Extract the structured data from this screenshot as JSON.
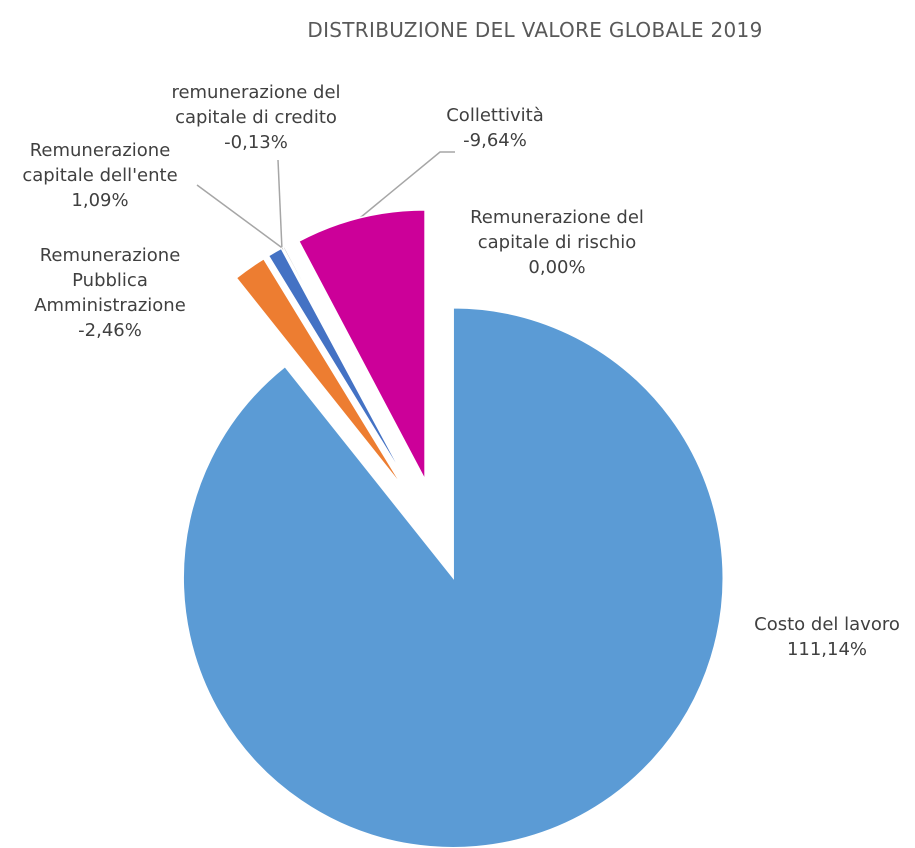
{
  "chart_data": {
    "type": "pie",
    "title": "DISTRIBUZIONE DEL VALORE GLOBALE 2019",
    "categories": [
      "Costo del lavoro",
      "Remunerazione Pubblica Amministrazione",
      "Remunerazione capitale dell'ente",
      "remunerazione del capitale di credito",
      "Collettività",
      "Remunerazione del capitale di rischio"
    ],
    "values": [
      111.14,
      -2.46,
      1.09,
      -0.13,
      -9.64,
      0.0
    ],
    "value_labels": [
      "111,14%",
      "-2,46%",
      "1,09%",
      "-0,13%",
      "-9,64%",
      "0,00%"
    ],
    "colors": [
      "#5b9bd5",
      "#ed7d31",
      "#4472c4",
      "#a5a5a5",
      "#cc0099",
      "#ffc000"
    ]
  }
}
